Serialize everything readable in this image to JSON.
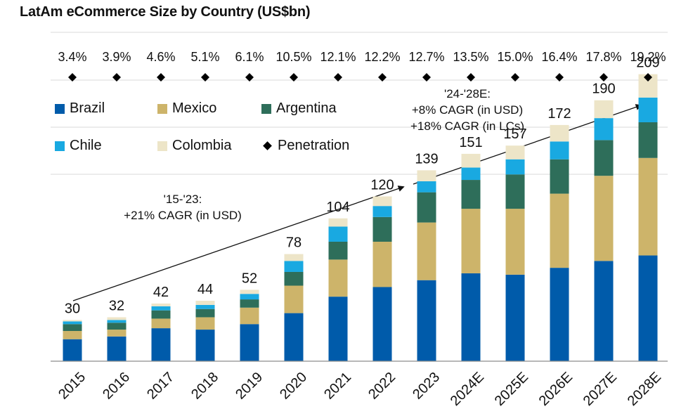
{
  "chart_data": {
    "type": "bar",
    "stacked": true,
    "title": "LatAm eCommerce Size by Country (US$bn)",
    "categories": [
      "2015",
      "2016",
      "2017",
      "2018",
      "2019",
      "2020",
      "2021",
      "2022",
      "2023",
      "2024E",
      "2025E",
      "2026E",
      "2027E",
      "2028E"
    ],
    "totals": [
      30,
      32,
      42,
      44,
      52,
      78,
      104,
      120,
      139,
      151,
      157,
      172,
      190,
      209
    ],
    "series": [
      {
        "name": "Brazil",
        "color": "#005BAA",
        "values": [
          16,
          18,
          24,
          23,
          27,
          35,
          47,
          54,
          59,
          64,
          63,
          68,
          73,
          77
        ]
      },
      {
        "name": "Mexico",
        "color": "#CDB46A",
        "values": [
          6,
          5,
          7,
          9,
          12,
          20,
          27,
          33,
          42,
          47,
          48,
          54,
          62,
          71
        ]
      },
      {
        "name": "Argentina",
        "color": "#2E6E5A",
        "values": [
          5,
          5,
          6,
          6,
          6,
          10,
          13,
          18,
          22,
          21,
          25,
          25,
          26,
          26
        ]
      },
      {
        "name": "Chile",
        "color": "#19A9E1",
        "values": [
          2,
          2,
          3,
          3,
          4,
          8,
          11,
          8,
          8,
          9,
          11,
          13,
          16,
          18
        ]
      },
      {
        "name": "Colombia",
        "color": "#EDE5C8",
        "values": [
          1,
          2,
          2,
          3,
          3,
          5,
          6,
          7,
          8,
          10,
          10,
          12,
          13,
          17
        ]
      }
    ],
    "penetration": {
      "name": "Penetration",
      "labels": [
        "3.4%",
        "3.9%",
        "4.6%",
        "5.1%",
        "6.1%",
        "10.5%",
        "12.1%",
        "12.2%",
        "12.7%",
        "13.5%",
        "15.0%",
        "16.4%",
        "17.8%",
        "19.2%"
      ]
    },
    "ylim": [
      0,
      240
    ],
    "grid": true,
    "legend_position": "top-left",
    "annotations": [
      {
        "id": "hist",
        "lines": [
          "'15-'23:",
          "+21% CAGR (in USD)"
        ]
      },
      {
        "id": "proj",
        "lines": [
          "'24-'28E:",
          "+8% CAGR (in USD)",
          "+18% CAGR (in LCs)"
        ]
      }
    ]
  }
}
